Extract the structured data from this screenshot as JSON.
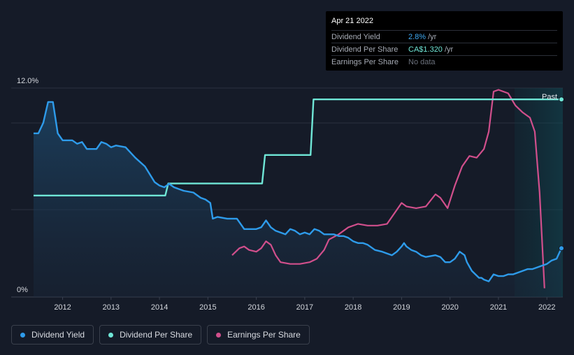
{
  "chart_data": {
    "type": "line",
    "title": "",
    "y_axis": {
      "max_label": "12.0%",
      "min_label": "0%",
      "ylim": [
        0,
        12
      ]
    },
    "x_axis": {
      "ticks": [
        "2012",
        "2013",
        "2014",
        "2015",
        "2016",
        "2017",
        "2018",
        "2019",
        "2020",
        "2021",
        "2022"
      ],
      "xlim": [
        2011.4,
        2022.3
      ]
    },
    "past_label": "Past",
    "series": [
      {
        "name": "Dividend Yield",
        "unit": "%",
        "color": "#2e9bea",
        "points": [
          [
            2011.4,
            9.4
          ],
          [
            2011.5,
            9.4
          ],
          [
            2011.6,
            10.0
          ],
          [
            2011.7,
            11.2
          ],
          [
            2011.8,
            11.2
          ],
          [
            2011.9,
            9.4
          ],
          [
            2012.0,
            9.0
          ],
          [
            2012.2,
            9.0
          ],
          [
            2012.3,
            8.8
          ],
          [
            2012.4,
            8.9
          ],
          [
            2012.5,
            8.5
          ],
          [
            2012.6,
            8.5
          ],
          [
            2012.7,
            8.5
          ],
          [
            2012.8,
            8.9
          ],
          [
            2012.9,
            8.8
          ],
          [
            2013.0,
            8.6
          ],
          [
            2013.1,
            8.7
          ],
          [
            2013.3,
            8.6
          ],
          [
            2013.5,
            8.0
          ],
          [
            2013.7,
            7.5
          ],
          [
            2013.9,
            6.6
          ],
          [
            2014.0,
            6.4
          ],
          [
            2014.1,
            6.3
          ],
          [
            2014.2,
            6.5
          ],
          [
            2014.3,
            6.3
          ],
          [
            2014.5,
            6.1
          ],
          [
            2014.7,
            6.0
          ],
          [
            2014.85,
            5.7
          ],
          [
            2014.95,
            5.6
          ],
          [
            2015.05,
            5.4
          ],
          [
            2015.1,
            4.5
          ],
          [
            2015.2,
            4.6
          ],
          [
            2015.4,
            4.5
          ],
          [
            2015.6,
            4.5
          ],
          [
            2015.75,
            3.9
          ],
          [
            2015.85,
            3.9
          ],
          [
            2016.0,
            3.9
          ],
          [
            2016.1,
            4.0
          ],
          [
            2016.2,
            4.4
          ],
          [
            2016.3,
            4.0
          ],
          [
            2016.4,
            3.8
          ],
          [
            2016.5,
            3.7
          ],
          [
            2016.6,
            3.6
          ],
          [
            2016.7,
            3.9
          ],
          [
            2016.8,
            3.8
          ],
          [
            2016.9,
            3.6
          ],
          [
            2017.0,
            3.7
          ],
          [
            2017.1,
            3.6
          ],
          [
            2017.2,
            3.9
          ],
          [
            2017.3,
            3.8
          ],
          [
            2017.4,
            3.6
          ],
          [
            2017.5,
            3.6
          ],
          [
            2017.6,
            3.6
          ],
          [
            2017.7,
            3.5
          ],
          [
            2017.8,
            3.5
          ],
          [
            2017.9,
            3.4
          ],
          [
            2018.0,
            3.2
          ],
          [
            2018.1,
            3.1
          ],
          [
            2018.2,
            3.1
          ],
          [
            2018.3,
            3.0
          ],
          [
            2018.45,
            2.7
          ],
          [
            2018.6,
            2.6
          ],
          [
            2018.7,
            2.5
          ],
          [
            2018.8,
            2.4
          ],
          [
            2018.9,
            2.6
          ],
          [
            2019.0,
            2.9
          ],
          [
            2019.05,
            3.1
          ],
          [
            2019.1,
            2.9
          ],
          [
            2019.2,
            2.7
          ],
          [
            2019.3,
            2.6
          ],
          [
            2019.4,
            2.4
          ],
          [
            2019.5,
            2.3
          ],
          [
            2019.7,
            2.4
          ],
          [
            2019.8,
            2.3
          ],
          [
            2019.9,
            2.0
          ],
          [
            2020.0,
            2.0
          ],
          [
            2020.1,
            2.2
          ],
          [
            2020.2,
            2.6
          ],
          [
            2020.3,
            2.4
          ],
          [
            2020.35,
            2.0
          ],
          [
            2020.45,
            1.5
          ],
          [
            2020.6,
            1.1
          ],
          [
            2020.65,
            1.1
          ],
          [
            2020.7,
            1.0
          ],
          [
            2020.8,
            0.9
          ],
          [
            2020.9,
            1.3
          ],
          [
            2021.0,
            1.2
          ],
          [
            2021.1,
            1.2
          ],
          [
            2021.2,
            1.3
          ],
          [
            2021.3,
            1.3
          ],
          [
            2021.4,
            1.4
          ],
          [
            2021.5,
            1.5
          ],
          [
            2021.6,
            1.6
          ],
          [
            2021.7,
            1.6
          ],
          [
            2021.8,
            1.7
          ],
          [
            2021.9,
            1.8
          ],
          [
            2022.0,
            1.9
          ],
          [
            2022.1,
            2.1
          ],
          [
            2022.2,
            2.2
          ],
          [
            2022.3,
            2.8
          ]
        ]
      },
      {
        "name": "Dividend Per Share",
        "unit": "CA$",
        "color": "#6fe6d6",
        "points": [
          [
            2011.4,
            0.68
          ],
          [
            2014.12,
            0.68
          ],
          [
            2014.18,
            0.76
          ],
          [
            2016.12,
            0.76
          ],
          [
            2016.18,
            0.95
          ],
          [
            2017.12,
            0.95
          ],
          [
            2017.18,
            1.32
          ],
          [
            2022.3,
            1.32
          ]
        ]
      },
      {
        "name": "Earnings Per Share",
        "unit": "CA$",
        "color": "#d14f8c",
        "points": [
          [
            2015.5,
            2.4
          ],
          [
            2015.65,
            2.8
          ],
          [
            2015.75,
            2.9
          ],
          [
            2015.85,
            2.7
          ],
          [
            2016.0,
            2.6
          ],
          [
            2016.1,
            2.8
          ],
          [
            2016.2,
            3.2
          ],
          [
            2016.3,
            3.0
          ],
          [
            2016.4,
            2.4
          ],
          [
            2016.5,
            2.0
          ],
          [
            2016.7,
            1.9
          ],
          [
            2016.9,
            1.9
          ],
          [
            2017.1,
            2.0
          ],
          [
            2017.25,
            2.2
          ],
          [
            2017.4,
            2.7
          ],
          [
            2017.5,
            3.3
          ],
          [
            2017.7,
            3.6
          ],
          [
            2017.9,
            4.0
          ],
          [
            2018.1,
            4.2
          ],
          [
            2018.3,
            4.1
          ],
          [
            2018.5,
            4.1
          ],
          [
            2018.7,
            4.2
          ],
          [
            2018.9,
            5.0
          ],
          [
            2019.0,
            5.4
          ],
          [
            2019.1,
            5.2
          ],
          [
            2019.3,
            5.1
          ],
          [
            2019.5,
            5.2
          ],
          [
            2019.7,
            5.9
          ],
          [
            2019.8,
            5.7
          ],
          [
            2019.95,
            5.1
          ],
          [
            2020.1,
            6.4
          ],
          [
            2020.25,
            7.5
          ],
          [
            2020.4,
            8.1
          ],
          [
            2020.55,
            8.0
          ],
          [
            2020.7,
            8.5
          ],
          [
            2020.8,
            9.5
          ],
          [
            2020.9,
            11.8
          ],
          [
            2021.0,
            11.9
          ],
          [
            2021.2,
            11.7
          ],
          [
            2021.35,
            11.0
          ],
          [
            2021.5,
            10.6
          ],
          [
            2021.65,
            10.3
          ],
          [
            2021.75,
            9.5
          ],
          [
            2021.85,
            6.0
          ],
          [
            2021.95,
            0.5
          ]
        ]
      }
    ],
    "grid": true,
    "legend_position": "bottom-left"
  },
  "tooltip": {
    "date": "Apr 21 2022",
    "rows": [
      {
        "label": "Dividend Yield",
        "value": "2.8%",
        "unit": "/yr"
      },
      {
        "label": "Dividend Per Share",
        "value": "CA$1.320",
        "unit": "/yr"
      },
      {
        "label": "Earnings Per Share",
        "value": "No data",
        "unit": ""
      }
    ]
  },
  "legend": [
    {
      "label": "Dividend Yield",
      "color": "#2e9bea"
    },
    {
      "label": "Dividend Per Share",
      "color": "#6fe6d6"
    },
    {
      "label": "Earnings Per Share",
      "color": "#d14f8c"
    }
  ]
}
